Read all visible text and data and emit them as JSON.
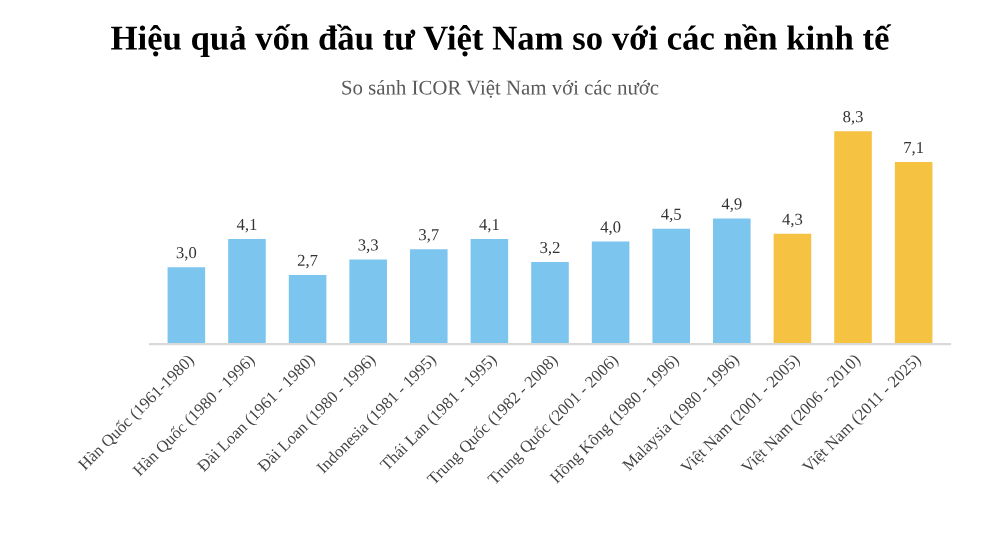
{
  "chart_data": {
    "type": "bar",
    "title": "Hiệu quả vốn đầu tư Việt Nam so với các nền kinh tế",
    "subtitle": "So sánh ICOR Việt Nam với các nước",
    "categories": [
      "Hàn Quốc (1961-1980)",
      "Hàn Quốc (1980 - 1996)",
      "Đài Loan (1961 - 1980)",
      "Đài Loan (1980 - 1996)",
      "Indonesia (1981 - 1995)",
      "Thái Lan (1981 - 1995)",
      "Trung Quốc (1982 - 2008)",
      "Trung Quốc (2001 - 2006)",
      "Hồng Kông (1980 - 1996)",
      "Malaysia (1980 - 1996)",
      "Việt Nam (2001 - 2005)",
      "Việt Nam (2006 - 2010)",
      "Việt Nam (2011 - 2025)"
    ],
    "values": [
      3.0,
      4.1,
      2.7,
      3.3,
      3.7,
      4.1,
      3.2,
      4.0,
      4.5,
      4.9,
      4.3,
      8.3,
      7.1
    ],
    "value_labels": [
      "3,0",
      "4,1",
      "2,7",
      "3,3",
      "3,7",
      "4,1",
      "3,2",
      "4,0",
      "4,5",
      "4,9",
      "4,3",
      "8,3",
      "7,1"
    ],
    "colors": [
      "#7cc5ee",
      "#7cc5ee",
      "#7cc5ee",
      "#7cc5ee",
      "#7cc5ee",
      "#7cc5ee",
      "#7cc5ee",
      "#7cc5ee",
      "#7cc5ee",
      "#7cc5ee",
      "#f5c242",
      "#f5c242",
      "#f5c242"
    ],
    "grid": false,
    "legend": false
  }
}
